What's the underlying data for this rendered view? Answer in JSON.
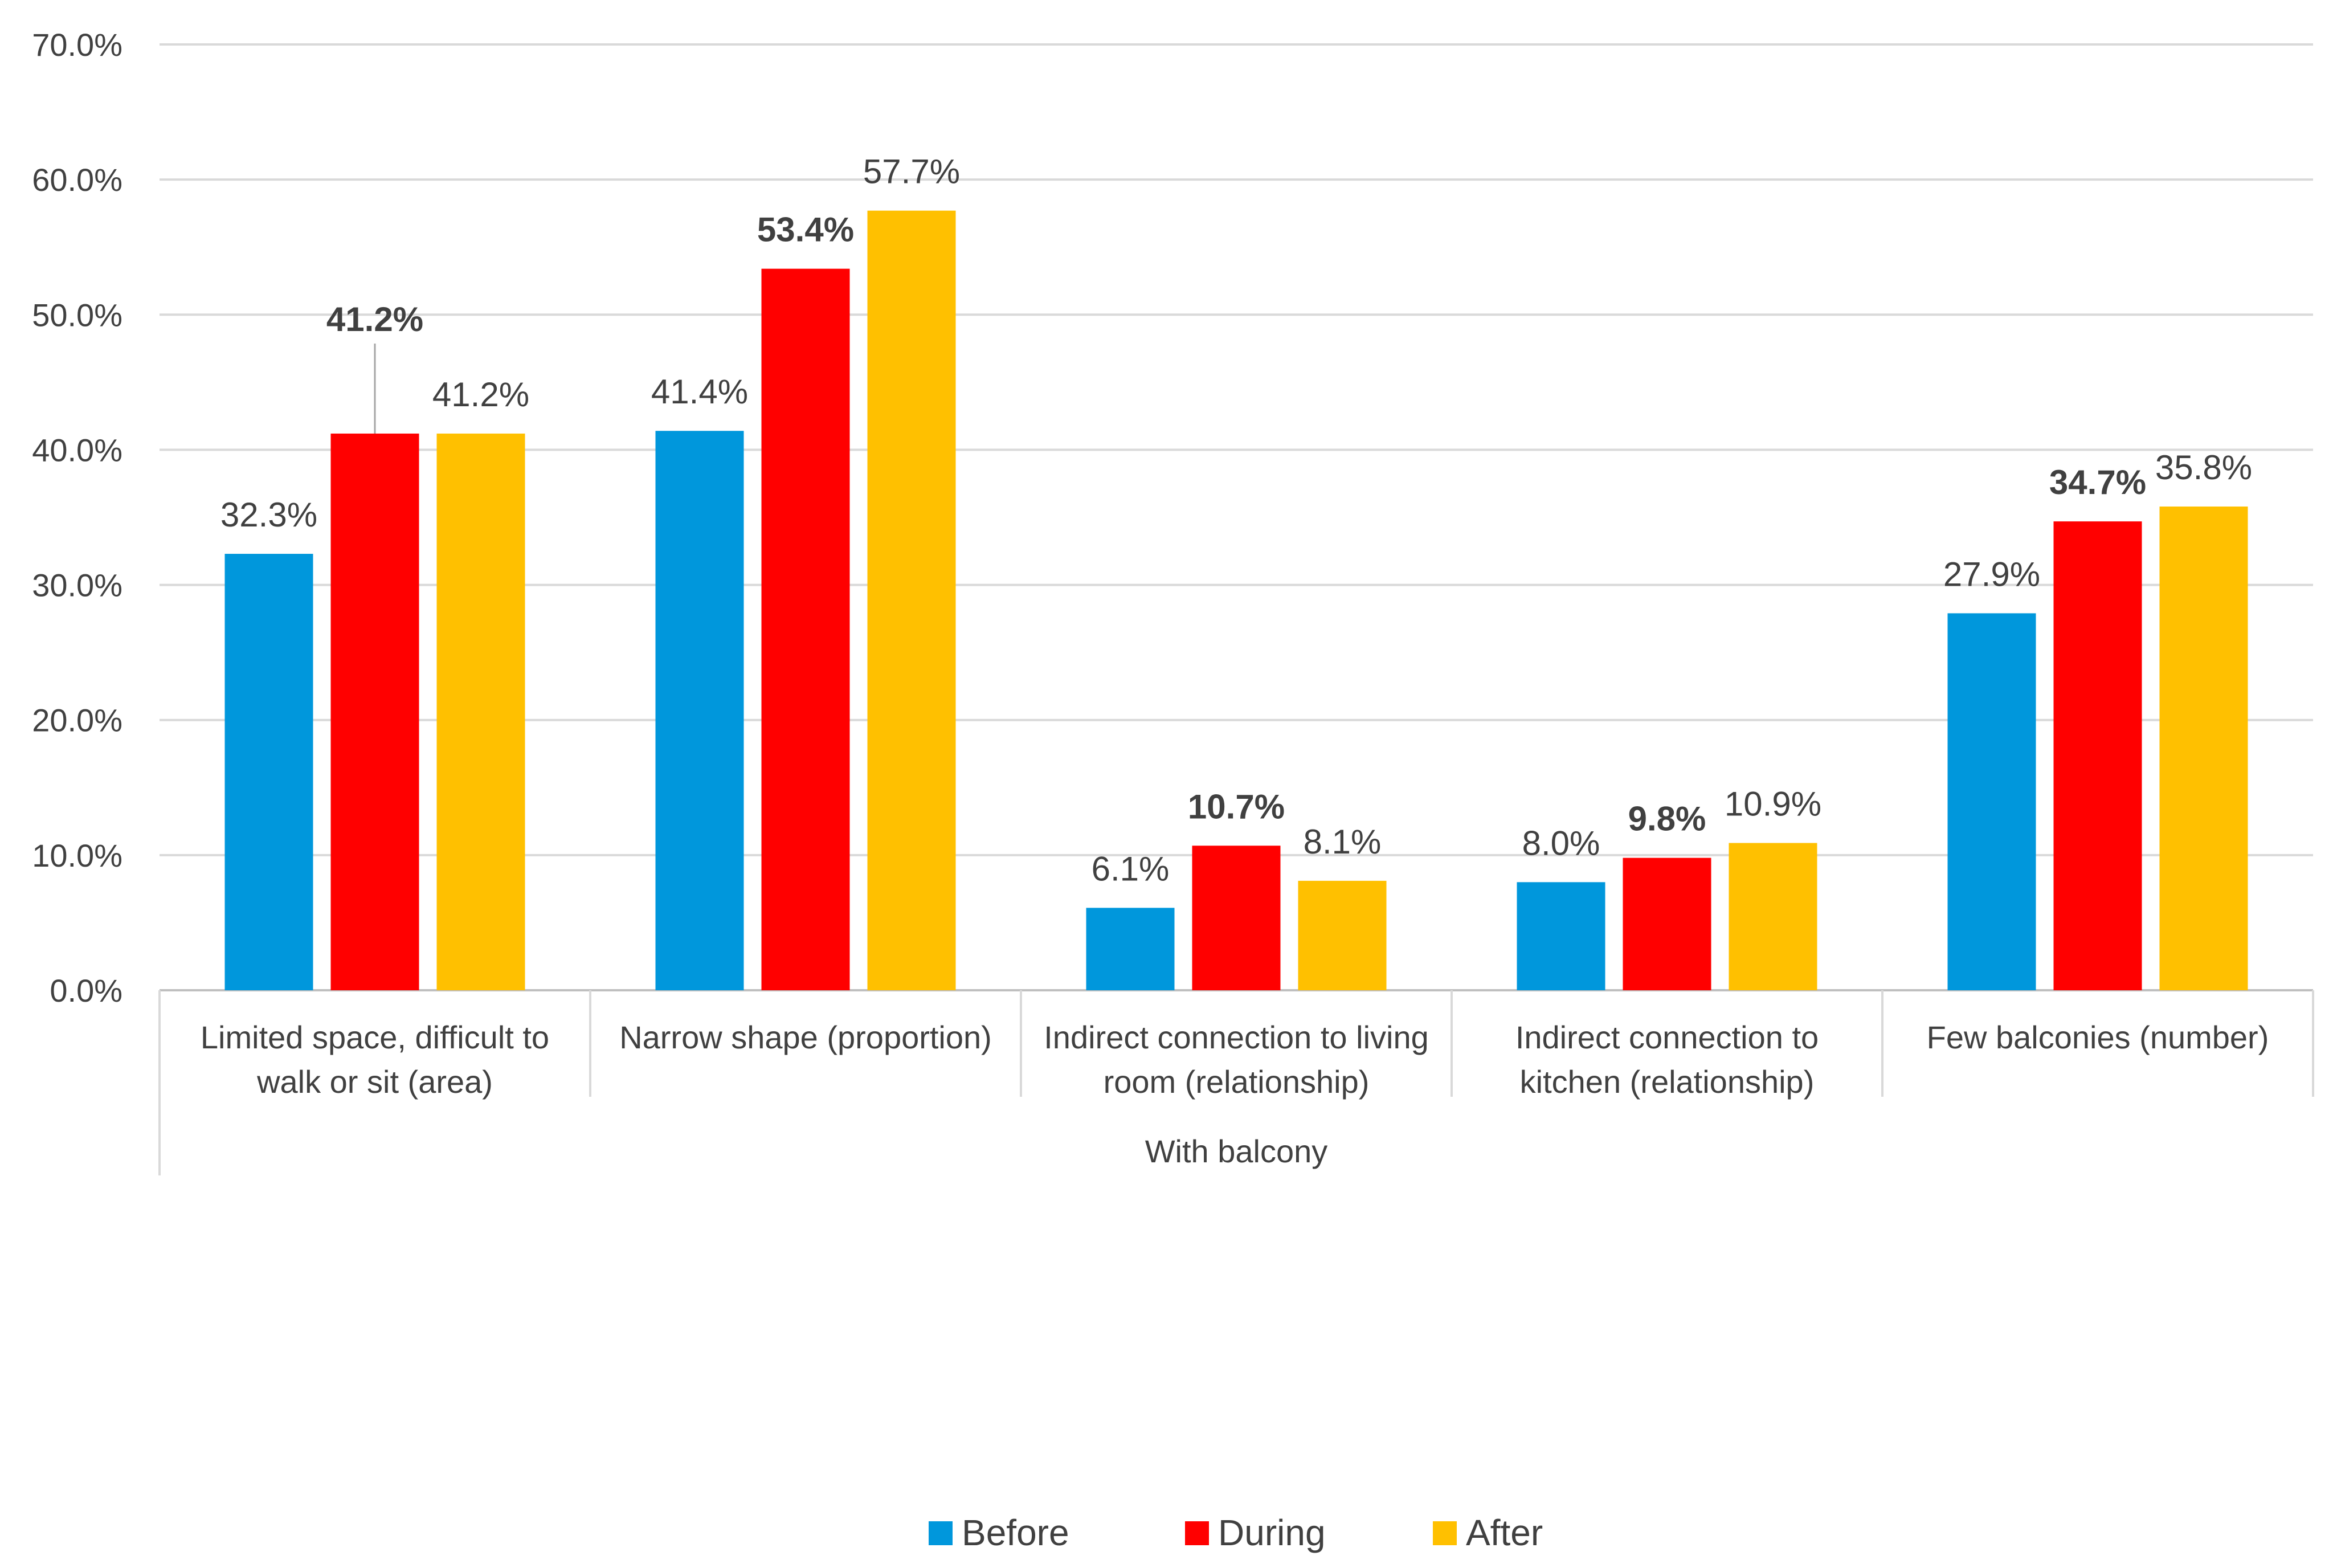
{
  "chart_data": {
    "type": "bar",
    "title": "",
    "xlabel": "",
    "ylabel": "",
    "ylim": [
      0,
      0.7
    ],
    "y_ticks": [
      0,
      0.1,
      0.2,
      0.3,
      0.4,
      0.5,
      0.6,
      0.7
    ],
    "y_tick_labels": [
      "0.0%",
      "10.0%",
      "20.0%",
      "30.0%",
      "40.0%",
      "50.0%",
      "60.0%",
      "70.0%"
    ],
    "grid": "horizontal",
    "legend_position": "bottom",
    "group_label": "With balcony",
    "categories": [
      [
        "Limited space, difficult to",
        "walk or sit (area)"
      ],
      [
        "Narrow shape (proportion)"
      ],
      [
        "Indirect connection to living",
        "room (relationship)"
      ],
      [
        "Indirect connection to",
        "kitchen (relationship)"
      ],
      [
        "Few balconies (number)"
      ]
    ],
    "series": [
      {
        "name": "Before",
        "color": "#0097DC",
        "values": [
          0.323,
          0.414,
          0.061,
          0.08,
          0.279
        ],
        "labels": [
          "32.3%",
          "41.4%",
          "6.1%",
          "8.0%",
          "27.9%"
        ],
        "bold_labels": false
      },
      {
        "name": "During",
        "color": "#FF0000",
        "values": [
          0.412,
          0.534,
          0.107,
          0.098,
          0.347
        ],
        "labels": [
          "41.2%",
          "53.4%",
          "10.7%",
          "9.8%",
          "34.7%"
        ],
        "bold_labels": true
      },
      {
        "name": "After",
        "color": "#FFC000",
        "values": [
          0.412,
          0.577,
          0.081,
          0.109,
          0.358
        ],
        "labels": [
          "41.2%",
          "57.7%",
          "8.1%",
          "10.9%",
          "35.8%"
        ],
        "bold_labels": false
      }
    ]
  }
}
